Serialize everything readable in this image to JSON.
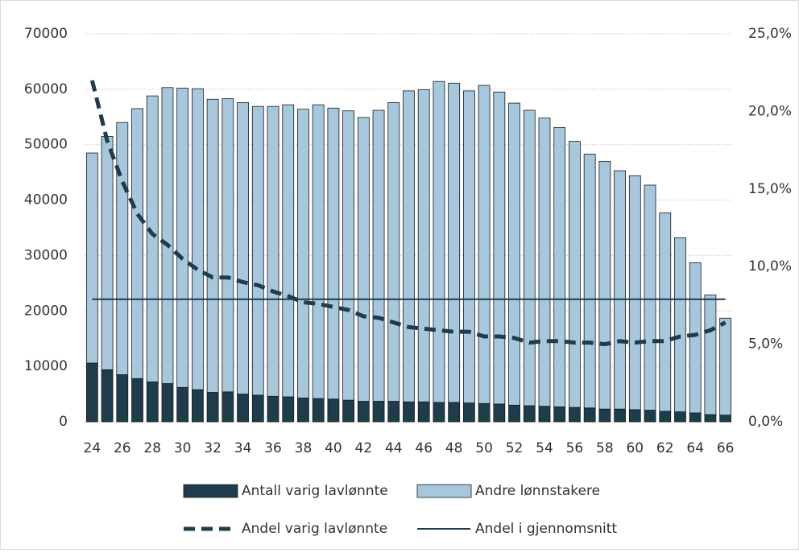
{
  "chart_data": {
    "type": "bar",
    "categories": [
      "24",
      null,
      "26",
      null,
      "28",
      null,
      "30",
      null,
      "32",
      null,
      "34",
      null,
      "36",
      null,
      "38",
      null,
      "40",
      null,
      "42",
      null,
      "44",
      null,
      "46",
      null,
      "48",
      null,
      "50",
      null,
      "52",
      null,
      "54",
      null,
      "56",
      null,
      "58",
      null,
      "60",
      null,
      "62",
      null,
      "64",
      null,
      "66"
    ],
    "series": [
      {
        "name": "Antall varig lavlønnte",
        "type": "bar",
        "color": "#1f3c4c",
        "values": [
          10600,
          9400,
          8500,
          7800,
          7200,
          6900,
          6200,
          5800,
          5300,
          5400,
          5000,
          4800,
          4600,
          4500,
          4300,
          4200,
          4100,
          3900,
          3700,
          3700,
          3700,
          3600,
          3600,
          3500,
          3500,
          3400,
          3300,
          3200,
          3000,
          2900,
          2800,
          2700,
          2600,
          2500,
          2300,
          2300,
          2200,
          2100,
          1900,
          1800,
          1600,
          1300,
          1200
        ]
      },
      {
        "name": "Andre lønnstakere",
        "type": "bar",
        "color": "#a7c8dc",
        "values": [
          37900,
          42100,
          45500,
          48700,
          51600,
          53400,
          54000,
          54300,
          52900,
          52900,
          52600,
          52100,
          52300,
          52700,
          52100,
          53000,
          52500,
          52200,
          51200,
          52500,
          53900,
          56100,
          56300,
          57900,
          57600,
          56300,
          57400,
          56300,
          54500,
          53300,
          52000,
          50400,
          48000,
          45800,
          44700,
          43000,
          42200,
          40600,
          35800,
          31400,
          27100,
          21600,
          17500
        ]
      },
      {
        "name": "Andel varig lavlønnte",
        "type": "line",
        "axis": "y2",
        "dashed": true,
        "color": "#1f3c4c",
        "values": [
          22.0,
          18.1,
          15.5,
          13.4,
          12.1,
          11.4,
          10.5,
          9.8,
          9.3,
          9.3,
          9.0,
          8.8,
          8.4,
          8.1,
          7.7,
          7.6,
          7.4,
          7.2,
          6.8,
          6.7,
          6.4,
          6.1,
          6.0,
          5.9,
          5.8,
          5.8,
          5.5,
          5.5,
          5.4,
          5.1,
          5.2,
          5.2,
          5.1,
          5.1,
          5.0,
          5.2,
          5.1,
          5.2,
          5.2,
          5.5,
          5.6,
          5.9,
          6.4
        ]
      },
      {
        "name": "Andel i gjennomsnitt",
        "type": "line",
        "axis": "y2",
        "dashed": false,
        "color": "#1f3c4c",
        "values": [
          7.9,
          7.9,
          7.9,
          7.9,
          7.9,
          7.9,
          7.9,
          7.9,
          7.9,
          7.9,
          7.9,
          7.9,
          7.9,
          7.9,
          7.9,
          7.9,
          7.9,
          7.9,
          7.9,
          7.9,
          7.9,
          7.9,
          7.9,
          7.9,
          7.9,
          7.9,
          7.9,
          7.9,
          7.9,
          7.9,
          7.9,
          7.9,
          7.9,
          7.9,
          7.9,
          7.9,
          7.9,
          7.9,
          7.9,
          7.9,
          7.9,
          7.9,
          7.9
        ]
      }
    ],
    "ylim": [
      0,
      70000
    ],
    "yticks": [
      0,
      10000,
      20000,
      30000,
      40000,
      50000,
      60000,
      70000
    ],
    "y2lim": [
      0,
      25
    ],
    "y2ticks": [
      {
        "value": 0,
        "label": "0,0%"
      },
      {
        "value": 5,
        "label": "5,0%"
      },
      {
        "value": 10,
        "label": "10,0%"
      },
      {
        "value": 15,
        "label": "15,0%"
      },
      {
        "value": 20,
        "label": "20,0%"
      },
      {
        "value": 25,
        "label": "25,0%"
      }
    ],
    "grid": true,
    "legend": "bottom"
  }
}
